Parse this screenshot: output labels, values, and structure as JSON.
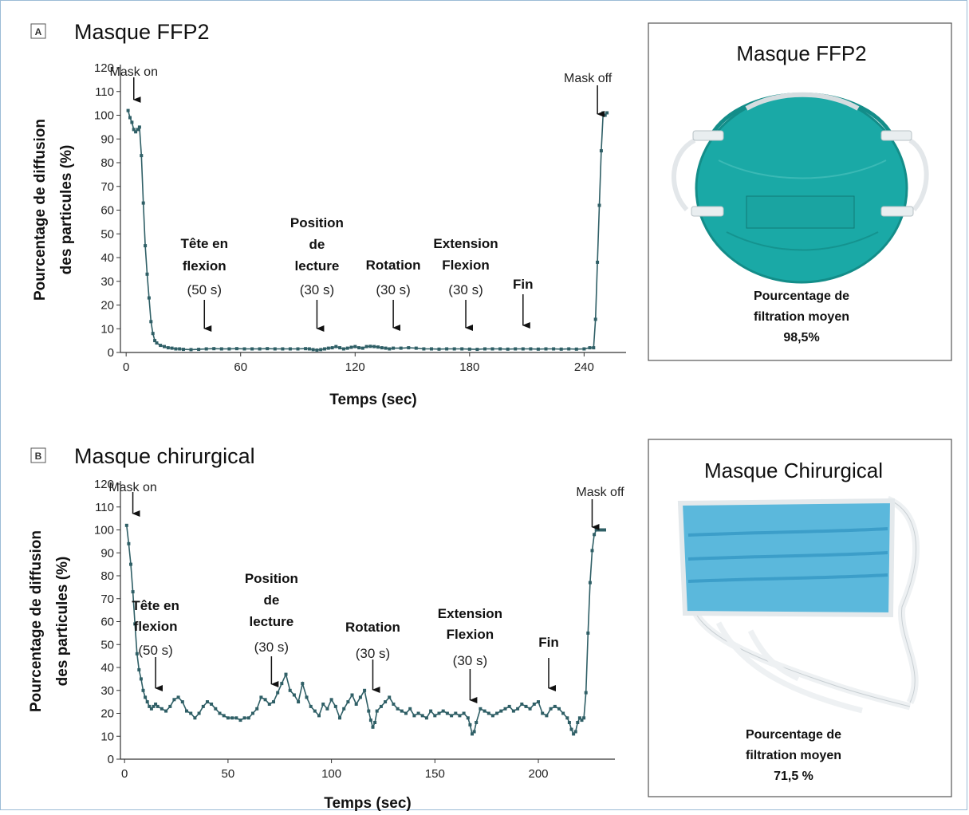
{
  "chart_data": [
    {
      "type": "line",
      "panel_letter": "A",
      "title": "Masque FFP2",
      "xlabel": "Temps (sec)",
      "ylabel": [
        "Pourcentage de diffusion",
        "des particules (%)"
      ],
      "xlim": [
        -3,
        262
      ],
      "ylim": [
        0,
        120
      ],
      "xticks": [
        0,
        60,
        120,
        180,
        240
      ],
      "yticks": [
        0,
        10,
        20,
        30,
        40,
        50,
        60,
        70,
        80,
        90,
        100,
        110,
        120
      ],
      "grid": false,
      "series": [
        {
          "color": "#2f5f66",
          "x": [
            1,
            2,
            3,
            4,
            5,
            6,
            7,
            8,
            9,
            10,
            11,
            12,
            13,
            14,
            15,
            16,
            18,
            20,
            22,
            24,
            26,
            28,
            30,
            34,
            38,
            42,
            46,
            50,
            54,
            58,
            62,
            66,
            70,
            74,
            78,
            82,
            86,
            90,
            94,
            96,
            98,
            100,
            102,
            104,
            106,
            108,
            110,
            112,
            114,
            116,
            118,
            120,
            122,
            124,
            126,
            128,
            130,
            132,
            134,
            136,
            138,
            140,
            144,
            148,
            152,
            156,
            160,
            164,
            168,
            172,
            176,
            180,
            184,
            188,
            192,
            196,
            200,
            204,
            208,
            212,
            216,
            220,
            224,
            228,
            232,
            236,
            240,
            243,
            245,
            246,
            247,
            248,
            249,
            250,
            251,
            252
          ],
          "y": [
            102,
            99,
            97,
            94,
            93,
            94,
            95,
            83,
            63,
            45,
            33,
            23,
            13,
            8,
            5,
            4,
            3,
            2.5,
            2,
            1.8,
            1.5,
            1.5,
            1.3,
            1.2,
            1.3,
            1.5,
            1.6,
            1.5,
            1.5,
            1.6,
            1.5,
            1.5,
            1.5,
            1.6,
            1.5,
            1.5,
            1.5,
            1.5,
            1.6,
            1.5,
            1.2,
            1,
            1.2,
            1.5,
            1.8,
            2,
            2.5,
            2,
            1.5,
            1.8,
            2.2,
            2.5,
            2,
            1.8,
            2.5,
            2.6,
            2.5,
            2.3,
            2,
            1.8,
            1.5,
            1.8,
            1.8,
            2,
            1.8,
            1.5,
            1.5,
            1.4,
            1.5,
            1.5,
            1.5,
            1.4,
            1.3,
            1.5,
            1.5,
            1.5,
            1.4,
            1.5,
            1.5,
            1.5,
            1.4,
            1.5,
            1.5,
            1.4,
            1.5,
            1.4,
            1.5,
            2,
            2,
            14,
            38,
            62,
            85,
            101,
            100,
            101
          ]
        }
      ],
      "annotations": [
        {
          "lines": [
            "Mask on"
          ],
          "style": "plain",
          "x": 4,
          "arrow": true
        },
        {
          "lines": [
            "Tête en",
            "flexion",
            "(50 s)"
          ],
          "style": "bold-duration",
          "x": 41,
          "arrow": true
        },
        {
          "lines": [
            "Position",
            "de",
            "lecture",
            "(30 s)"
          ],
          "style": "bold-duration",
          "x": 100,
          "arrow": true
        },
        {
          "lines": [
            "Rotation",
            "(30 s)"
          ],
          "style": "bold-duration",
          "x": 140,
          "arrow": true
        },
        {
          "lines": [
            "Extension",
            "Flexion",
            "(30 s)"
          ],
          "style": "bold-duration",
          "x": 178,
          "arrow": true
        },
        {
          "lines": [
            "Fin"
          ],
          "style": "bold",
          "x": 208,
          "arrow": true
        },
        {
          "lines": [
            "Mask off"
          ],
          "style": "plain",
          "x": 247,
          "arrow": true
        }
      ]
    },
    {
      "type": "line",
      "panel_letter": "B",
      "title": "Masque chirurgical",
      "xlabel": "Temps (sec)",
      "ylabel": [
        "Pourcentage de diffusion",
        "des particules (%)"
      ],
      "xlim": [
        -2,
        237
      ],
      "ylim": [
        0,
        120
      ],
      "xticks": [
        0,
        50,
        100,
        150,
        200
      ],
      "yticks": [
        0,
        10,
        20,
        30,
        40,
        50,
        60,
        70,
        80,
        90,
        100,
        110,
        120
      ],
      "grid": false,
      "series": [
        {
          "color": "#2f5f66",
          "x": [
            1,
            2,
            3,
            4,
            5,
            6,
            7,
            8,
            9,
            10,
            11,
            12,
            13,
            14,
            15,
            16,
            18,
            20,
            22,
            24,
            26,
            28,
            30,
            32,
            34,
            36,
            38,
            40,
            42,
            44,
            46,
            48,
            50,
            52,
            54,
            56,
            58,
            60,
            62,
            64,
            66,
            68,
            70,
            72,
            74,
            76,
            78,
            80,
            82,
            84,
            86,
            88,
            90,
            92,
            94,
            96,
            98,
            100,
            102,
            104,
            106,
            108,
            110,
            112,
            114,
            116,
            118,
            119,
            120,
            121,
            122,
            124,
            126,
            128,
            130,
            132,
            134,
            136,
            138,
            140,
            142,
            144,
            146,
            148,
            150,
            152,
            154,
            156,
            158,
            160,
            162,
            164,
            166,
            167,
            168,
            169,
            170,
            172,
            174,
            176,
            178,
            180,
            182,
            184,
            186,
            188,
            190,
            192,
            194,
            196,
            198,
            200,
            202,
            204,
            206,
            208,
            210,
            212,
            214,
            215,
            216,
            217,
            218,
            219,
            220,
            221,
            222,
            223,
            224,
            225,
            226,
            227,
            228,
            229,
            230,
            231,
            232
          ],
          "y": [
            102,
            94,
            85,
            73,
            59,
            46,
            39,
            35,
            30,
            27,
            25,
            23,
            22,
            23,
            24,
            23,
            22,
            21,
            23,
            26,
            27,
            25,
            21,
            20,
            18,
            20,
            23,
            25,
            24,
            22,
            20,
            19,
            18,
            18,
            18,
            17,
            18,
            18,
            20,
            22,
            27,
            26,
            24,
            25,
            29,
            33,
            37,
            30,
            28,
            25,
            33,
            27,
            23,
            21,
            19,
            24,
            22,
            26,
            23,
            18,
            22,
            25,
            28,
            24,
            27,
            30,
            21,
            17,
            14,
            16,
            21,
            23,
            25,
            27,
            24,
            22,
            21,
            20,
            22,
            19,
            20,
            19,
            18,
            21,
            19,
            20,
            21,
            20,
            19,
            20,
            19,
            20,
            18,
            15,
            11,
            12,
            16,
            22,
            21,
            20,
            19,
            20,
            21,
            22,
            23,
            21,
            22,
            24,
            23,
            22,
            24,
            25,
            20,
            19,
            22,
            23,
            22,
            20,
            18,
            16,
            13,
            11,
            12,
            16,
            18,
            17,
            18,
            29,
            55,
            77,
            91,
            98,
            100,
            100,
            100,
            100,
            100
          ]
        }
      ],
      "annotations": [
        {
          "lines": [
            "Mask on"
          ],
          "style": "plain",
          "x": 4,
          "arrow": true
        },
        {
          "lines": [
            "Tête en",
            "flexion",
            "(50 s)"
          ],
          "style": "bold-duration",
          "x": 15,
          "arrow": true
        },
        {
          "lines": [
            "Position",
            "de",
            "lecture",
            "(30 s)"
          ],
          "style": "bold-duration",
          "x": 71,
          "arrow": true
        },
        {
          "lines": [
            "Rotation",
            "(30 s)"
          ],
          "style": "bold-duration",
          "x": 120,
          "arrow": true
        },
        {
          "lines": [
            "Extension",
            "Flexion",
            "(30 s)"
          ],
          "style": "bold-duration",
          "x": 167,
          "arrow": true
        },
        {
          "lines": [
            "Fin"
          ],
          "style": "bold",
          "x": 205,
          "arrow": true
        },
        {
          "lines": [
            "Mask off"
          ],
          "style": "plain",
          "x": 226,
          "arrow": true
        }
      ]
    }
  ],
  "side_boxes": [
    {
      "title": "Masque FFP2",
      "image_icon": "ffp2-mask-icon",
      "image_colors": {
        "body": "#1aa9a6",
        "edge": "#16908c",
        "strap": "#e8ecef"
      },
      "caption": [
        "Pourcentage de",
        "filtration moyen",
        "98,5%"
      ]
    },
    {
      "title": "Masque Chirurgical",
      "image_icon": "surgical-mask-icon",
      "image_colors": {
        "body": "#5bb8dc",
        "pleat": "#3c9ec9",
        "strap": "#eef1f3"
      },
      "caption": [
        "Pourcentage de",
        "filtration moyen",
        "71,5 %"
      ]
    }
  ]
}
